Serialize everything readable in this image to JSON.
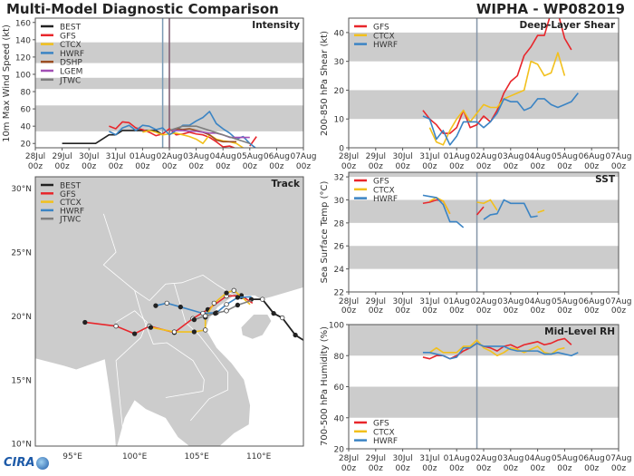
{
  "header": {
    "title_left": "Multi-Model Diagnostic Comparison",
    "title_right": "WIPHA - WP082019"
  },
  "logo_text": "CIRA",
  "colors": {
    "BEST": "#222222",
    "GFS": "#e8262b",
    "CTCX": "#f2c01c",
    "HWRF": "#3b84c4",
    "DSHP": "#9b4e23",
    "LGEM": "#a24fb5",
    "JTWC": "#7f7f7f",
    "band": "#cccccc",
    "land": "#cccccc",
    "border": "#ffffff"
  },
  "chart_data": [
    {
      "id": "intensity",
      "type": "line",
      "title": "Intensity",
      "ylabel": "10m Max Wind Speed (kt)",
      "ylim": [
        15,
        165
      ],
      "yticks": [
        "20",
        "40",
        "60",
        "80",
        "100",
        "120",
        "140",
        "160"
      ],
      "xlim": [
        "2019-07-28T00",
        "2019-08-07T00"
      ],
      "xticks": [
        [
          "28Jul",
          "00z"
        ],
        [
          "29Jul",
          "00z"
        ],
        [
          "30Jul",
          "00z"
        ],
        [
          "31Jul",
          "00z"
        ],
        [
          "01Aug",
          "00z"
        ],
        [
          "02Aug",
          "00z"
        ],
        [
          "03Aug",
          "00z"
        ],
        [
          "04Aug",
          "00z"
        ],
        [
          "05Aug",
          "00z"
        ],
        [
          "06Aug",
          "00z"
        ],
        [
          "07Aug",
          "00z"
        ]
      ],
      "bands": [
        [
          34,
          64
        ],
        [
          83,
          96
        ],
        [
          113,
          137
        ]
      ],
      "vlines": [
        {
          "time": "2019-08-01T18",
          "color": "#7a9bb5"
        },
        {
          "time": "2019-08-02T00",
          "color": "#7d5a6e"
        }
      ],
      "legend": "top-left",
      "series": [
        {
          "name": "BEST",
          "start": "2019-07-29T00",
          "step_hours": 6,
          "values": [
            20,
            20,
            20,
            20,
            20,
            20,
            25,
            30,
            30,
            35,
            35,
            35,
            35,
            35,
            35,
            30
          ]
        },
        {
          "name": "GFS",
          "start": "2019-07-30T18",
          "step_hours": 6,
          "values": [
            40,
            37,
            45,
            44,
            38,
            36,
            33,
            29,
            31,
            37,
            30,
            31,
            33,
            31,
            30,
            27,
            22,
            16,
            17,
            14,
            null,
            17,
            28
          ]
        },
        {
          "name": "CTCX",
          "start": "2019-08-01T00",
          "step_hours": 6,
          "values": [
            33,
            35,
            33,
            30,
            31,
            32,
            30,
            28,
            25,
            20,
            30,
            25,
            23,
            22,
            20,
            15
          ]
        },
        {
          "name": "HWRF",
          "start": "2019-07-30T18",
          "step_hours": 6,
          "values": [
            34,
            30,
            38,
            41,
            35,
            41,
            40,
            36,
            38,
            30,
            35,
            41,
            41,
            46,
            50,
            57,
            43,
            37,
            32,
            25,
            28,
            20,
            14
          ]
        },
        {
          "name": "DSHP",
          "start": "2019-08-02T00",
          "step_hours": 6,
          "values": [
            35,
            37,
            36,
            37,
            35,
            33,
            30,
            24,
            22,
            22,
            22
          ]
        },
        {
          "name": "LGEM",
          "start": "2019-08-02T00",
          "step_hours": 6,
          "values": [
            35,
            35,
            35,
            34,
            34,
            33,
            32,
            32,
            30,
            27,
            27,
            27,
            27
          ]
        },
        {
          "name": "JTWC",
          "start": "2019-08-02T00",
          "step_hours": 12,
          "values": [
            35,
            40,
            40,
            35,
            30,
            25,
            20
          ]
        }
      ]
    },
    {
      "id": "shear",
      "type": "line",
      "title": "Deep-Layer Shear",
      "ylabel": "200-850 hPa Shear (kt)",
      "ylim": [
        0,
        45
      ],
      "yticks": [
        "0",
        "10",
        "20",
        "30",
        "40"
      ],
      "xlim": [
        "2019-07-28T00",
        "2019-08-07T00"
      ],
      "xticks": [
        [
          "28Jul",
          "00z"
        ],
        [
          "29Jul",
          "00z"
        ],
        [
          "30Jul",
          "00z"
        ],
        [
          "31Jul",
          "00z"
        ],
        [
          "01Aug",
          "00z"
        ],
        [
          "02Aug",
          "00z"
        ],
        [
          "03Aug",
          "00z"
        ],
        [
          "04Aug",
          "00z"
        ],
        [
          "05Aug",
          "00z"
        ],
        [
          "06Aug",
          "00z"
        ],
        [
          "07Aug",
          "00z"
        ]
      ],
      "bands": [
        [
          10,
          20
        ],
        [
          30,
          40
        ]
      ],
      "vlines": [
        {
          "time": "2019-08-01T18",
          "color": "#8595a8"
        }
      ],
      "legend": "top-left",
      "series": [
        {
          "name": "GFS",
          "start": "2019-07-30T18",
          "step_hours": 6,
          "values": [
            13,
            10,
            8,
            5,
            5,
            7,
            13,
            7,
            8,
            11,
            9,
            13,
            19,
            23,
            25,
            32,
            35,
            39,
            39,
            47,
            47,
            38,
            34
          ]
        },
        {
          "name": "CTCX",
          "start": "2019-07-31T00",
          "step_hours": 6,
          "values": [
            7,
            2,
            1,
            6,
            10,
            13,
            9,
            12,
            15,
            14,
            14,
            17,
            18,
            19,
            20,
            30,
            29,
            25,
            26,
            33,
            25
          ]
        },
        {
          "name": "HWRF",
          "start": "2019-07-30T18",
          "step_hours": 6,
          "values": [
            11,
            10,
            3,
            6,
            1,
            4,
            9,
            9,
            9,
            7,
            9,
            12,
            17,
            16,
            16,
            13,
            14,
            17,
            17,
            15,
            14,
            15,
            16,
            19
          ]
        }
      ]
    },
    {
      "id": "sst",
      "type": "line",
      "title": "SST",
      "ylabel": "Sea Surface Temp (°C)",
      "ylim": [
        22,
        32.4
      ],
      "yticks": [
        "22",
        "24",
        "26",
        "28",
        "30",
        "32"
      ],
      "xlim": [
        "2019-07-28T00",
        "2019-08-07T00"
      ],
      "xticks": [
        [
          "28Jul",
          "00z"
        ],
        [
          "29Jul",
          "00z"
        ],
        [
          "30Jul",
          "00z"
        ],
        [
          "31Jul",
          "00z"
        ],
        [
          "01Aug",
          "00z"
        ],
        [
          "02Aug",
          "00z"
        ],
        [
          "03Aug",
          "00z"
        ],
        [
          "04Aug",
          "00z"
        ],
        [
          "05Aug",
          "00z"
        ],
        [
          "06Aug",
          "00z"
        ],
        [
          "07Aug",
          "00z"
        ]
      ],
      "bands": [
        [
          24,
          26
        ],
        [
          28,
          30
        ],
        [
          32,
          34
        ]
      ],
      "vlines": [
        {
          "time": "2019-08-01T18",
          "color": "#8595a8"
        }
      ],
      "legend": "top-left",
      "series": [
        {
          "name": "GFS",
          "start": "2019-07-30T18",
          "step_hours": 6,
          "values": [
            29.7,
            29.8,
            30.0,
            29.9,
            28.8,
            null,
            null,
            null,
            28.7,
            29.4
          ]
        },
        {
          "name": "CTCX",
          "start": "2019-07-31T00",
          "step_hours": 6,
          "values": [
            29.9,
            30.2,
            29.9,
            28.8,
            null,
            null,
            null,
            29.8,
            29.7,
            30.0,
            29.1,
            null,
            null,
            null,
            null,
            null,
            28.9,
            29.1
          ]
        },
        {
          "name": "HWRF",
          "start": "2019-07-30T18",
          "step_hours": 6,
          "values": [
            30.4,
            30.3,
            30.2,
            29.6,
            28.1,
            28.1,
            27.6,
            null,
            null,
            28.3,
            28.7,
            28.8,
            30.0,
            29.7,
            29.7,
            29.7,
            28.5,
            28.6
          ]
        }
      ]
    },
    {
      "id": "rh",
      "type": "line",
      "title": "Mid-Level RH",
      "ylabel": "700-500 hPa Humidity (%)",
      "ylim": [
        20,
        100
      ],
      "yticks": [
        "20",
        "40",
        "60",
        "80",
        "100"
      ],
      "xlim": [
        "2019-07-28T00",
        "2019-08-07T00"
      ],
      "xticks": [
        [
          "28Jul",
          "00z"
        ],
        [
          "29Jul",
          "00z"
        ],
        [
          "30Jul",
          "00z"
        ],
        [
          "31Jul",
          "00z"
        ],
        [
          "01Aug",
          "00z"
        ],
        [
          "02Aug",
          "00z"
        ],
        [
          "03Aug",
          "00z"
        ],
        [
          "04Aug",
          "00z"
        ],
        [
          "05Aug",
          "00z"
        ],
        [
          "06Aug",
          "00z"
        ],
        [
          "07Aug",
          "00z"
        ]
      ],
      "bands": [
        [
          40,
          60
        ],
        [
          80,
          100
        ]
      ],
      "vlines": [
        {
          "time": "2019-08-01T18",
          "color": "#8595a8"
        }
      ],
      "legend": "bottom-left",
      "series": [
        {
          "name": "GFS",
          "start": "2019-07-30T18",
          "step_hours": 6,
          "values": [
            79,
            78,
            80,
            80,
            78,
            80,
            83,
            85,
            88,
            86,
            85,
            83,
            86,
            87,
            85,
            87,
            88,
            89,
            87,
            88,
            90,
            91,
            87
          ]
        },
        {
          "name": "CTCX",
          "start": "2019-07-31T00",
          "step_hours": 6,
          "values": [
            82,
            85,
            82,
            82,
            82,
            86,
            86,
            90,
            85,
            83,
            80,
            82,
            85,
            84,
            82,
            84,
            86,
            82,
            81,
            84,
            85
          ]
        },
        {
          "name": "HWRF",
          "start": "2019-07-30T18",
          "step_hours": 6,
          "values": [
            82,
            82,
            81,
            80,
            78,
            79,
            85,
            85,
            88,
            86,
            86,
            86,
            86,
            84,
            83,
            83,
            83,
            83,
            81,
            81,
            82,
            81,
            80,
            82
          ]
        }
      ]
    },
    {
      "id": "track",
      "type": "map",
      "title": "Track",
      "lon_range": [
        92,
        113.6
      ],
      "lat_range": [
        9.8,
        30.9
      ],
      "lat_ticks": [
        {
          "v": 10,
          "label": "10°N"
        },
        {
          "v": 15,
          "label": "15°N"
        },
        {
          "v": 20,
          "label": "20°N"
        },
        {
          "v": 25,
          "label": "25°N"
        },
        {
          "v": 30,
          "label": "30°N"
        }
      ],
      "lon_ticks": [
        {
          "v": 95,
          "label": "95°E"
        },
        {
          "v": 100,
          "label": "100°E"
        },
        {
          "v": 105,
          "label": "105°E"
        },
        {
          "v": 110,
          "label": "110°E"
        }
      ],
      "legend": "top-left",
      "series": [
        {
          "name": "BEST",
          "points": [
            [
              113.6,
              18.1
            ],
            [
              112.95,
              18.5
            ],
            [
              111.9,
              19.85
            ],
            [
              111.2,
              20.2
            ],
            [
              110.3,
              21.3
            ],
            [
              109.4,
              21.3
            ]
          ]
        },
        {
          "name": "GFS",
          "points": [
            [
              109.5,
              21.0
            ],
            [
              108.6,
              21.6
            ],
            [
              107.4,
              21.55
            ],
            [
              105.9,
              20.5
            ],
            [
              104.7,
              19.8
            ],
            [
              103.2,
              18.7
            ],
            [
              101.2,
              19.2
            ],
            [
              100.0,
              18.6
            ],
            [
              98.5,
              19.2
            ],
            [
              96.0,
              19.5
            ]
          ]
        },
        {
          "name": "CTCX",
          "points": [
            [
              109.3,
              20.9
            ],
            [
              108.6,
              21.5
            ],
            [
              108.0,
              22.0
            ],
            [
              107.4,
              21.8
            ],
            [
              106.4,
              21.0
            ],
            [
              105.7,
              19.9
            ],
            [
              105.7,
              18.9
            ],
            [
              104.8,
              18.75
            ],
            [
              103.2,
              18.75
            ],
            [
              101.3,
              19.1
            ]
          ]
        },
        {
          "name": "HWRF",
          "points": [
            [
              109.4,
              21.5
            ],
            [
              108.3,
              21.45
            ],
            [
              107.4,
              20.9
            ],
            [
              106.6,
              20.25
            ],
            [
              105.5,
              20.2
            ],
            [
              103.7,
              20.7
            ],
            [
              102.6,
              21.0
            ],
            [
              101.7,
              20.8
            ]
          ]
        },
        {
          "name": "JTWC",
          "points": [
            [
              109.4,
              21.2
            ],
            [
              108.3,
              20.85
            ],
            [
              107.4,
              20.4
            ],
            [
              106.5,
              20.2
            ],
            [
              105.7,
              20.0
            ],
            [
              104.8,
              19.7
            ]
          ]
        }
      ]
    }
  ]
}
